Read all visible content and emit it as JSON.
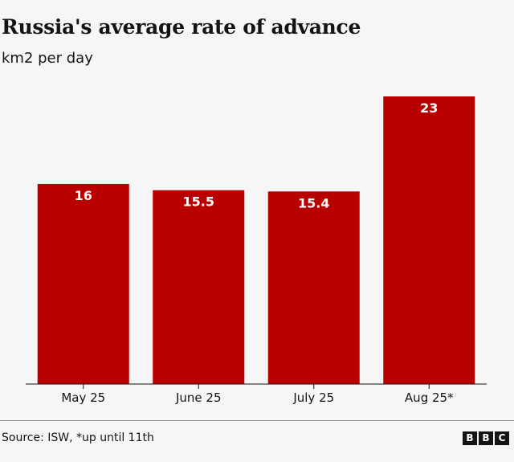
{
  "title": "Russia's average rate of advance",
  "subtitle": "km2 per day",
  "source": "Source: ISW, *up until 11th",
  "logo": [
    "B",
    "B",
    "C"
  ],
  "colors": {
    "bar": "#b80000",
    "label": "#ffffff",
    "axis": "#141414",
    "text": "#141414",
    "background": "#f6f6f6"
  },
  "chart_data": {
    "type": "bar",
    "categories": [
      "May 25",
      "June 25",
      "July 25",
      "Aug 25*"
    ],
    "values": [
      16,
      15.5,
      15.4,
      23
    ],
    "data_labels": [
      "16",
      "15.5",
      "15.4",
      "23"
    ],
    "title": "Russia's average rate of advance",
    "ylabel": "km2 per day",
    "xlabel": "",
    "ylim": [
      0,
      23
    ],
    "grid": false,
    "legend": "none",
    "bar_color": "#b80000",
    "data_label_position": "inside-top"
  }
}
